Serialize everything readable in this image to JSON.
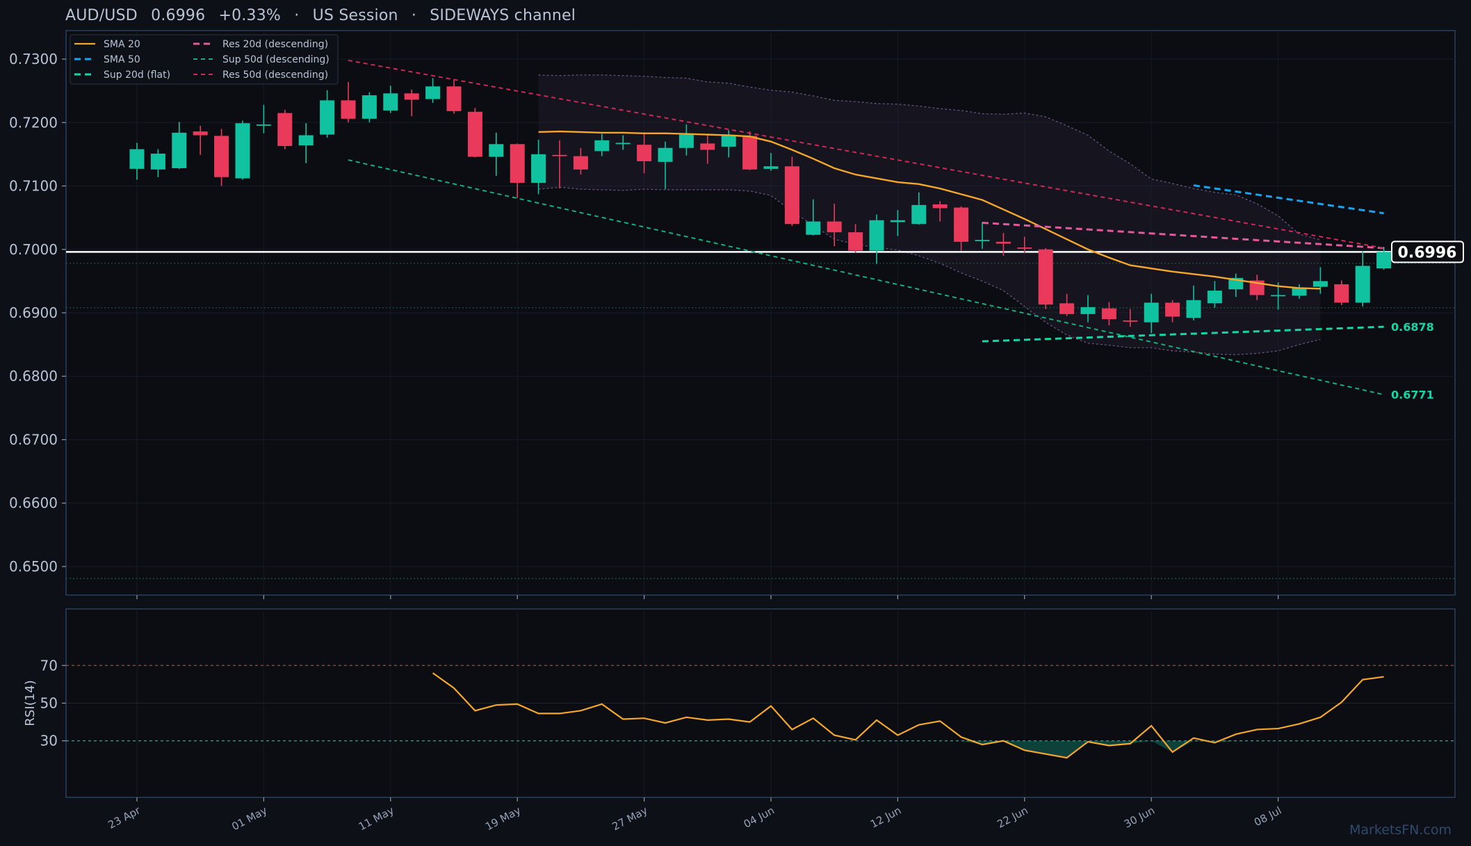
{
  "header": {
    "pair": "AUD/USD",
    "price": "0.6996",
    "change": "+0.33%",
    "session": "US Session",
    "channel": "SIDEWAYS channel",
    "separator": "·"
  },
  "watermark": "MarketsFN.com",
  "colors": {
    "background": "#0d1017",
    "panel_border": "#27405f",
    "bull": "#11c2a0",
    "bear": "#ea3a5b",
    "sma20": "#f5a72c",
    "sma50": "#19a3f0",
    "sup20": "#17d6a6",
    "res20": "#e25a9a",
    "sup50": "#16b07e",
    "res50": "#cf2a57",
    "price_line": "#ffffff",
    "text": "#b9c4d6",
    "rsi_line": "#f5a72c",
    "rsi_70": "#b8323f",
    "rsi_30": "#1aa38a"
  },
  "chart_data": [
    {
      "type": "candlestick",
      "ylim": [
        0.6455,
        0.7345
      ],
      "yticks": [
        "0.7300",
        "0.7200",
        "0.7100",
        "0.7000",
        "0.6900",
        "0.6800",
        "0.6700",
        "0.6600",
        "0.6500"
      ],
      "ytick_values": [
        0.73,
        0.72,
        0.71,
        0.7,
        0.69,
        0.68,
        0.67,
        0.66,
        0.65
      ],
      "xticks": [
        {
          "label": "23 Apr",
          "index": 0
        },
        {
          "label": "01 May",
          "index": 6
        },
        {
          "label": "11 May",
          "index": 12
        },
        {
          "label": "19 May",
          "index": 18
        },
        {
          "label": "27 May",
          "index": 24
        },
        {
          "label": "04 Jun",
          "index": 30
        },
        {
          "label": "12 Jun",
          "index": 36
        },
        {
          "label": "22 Jun",
          "index": 42
        },
        {
          "label": "30 Jun",
          "index": 48
        },
        {
          "label": "08 Jul",
          "index": 54
        }
      ],
      "candles": [
        {
          "o": 0.7127,
          "h": 0.7168,
          "l": 0.711,
          "c": 0.7158
        },
        {
          "o": 0.7126,
          "h": 0.7158,
          "l": 0.7114,
          "c": 0.7151
        },
        {
          "o": 0.7128,
          "h": 0.7201,
          "l": 0.7127,
          "c": 0.7184
        },
        {
          "o": 0.7186,
          "h": 0.7195,
          "l": 0.7149,
          "c": 0.718
        },
        {
          "o": 0.7179,
          "h": 0.719,
          "l": 0.71,
          "c": 0.7114
        },
        {
          "o": 0.7112,
          "h": 0.7203,
          "l": 0.711,
          "c": 0.7199
        },
        {
          "o": 0.7197,
          "h": 0.7228,
          "l": 0.7183,
          "c": 0.7197
        },
        {
          "o": 0.7215,
          "h": 0.722,
          "l": 0.7158,
          "c": 0.7163
        },
        {
          "o": 0.7164,
          "h": 0.7199,
          "l": 0.7136,
          "c": 0.718
        },
        {
          "o": 0.7181,
          "h": 0.7251,
          "l": 0.7176,
          "c": 0.7235
        },
        {
          "o": 0.7235,
          "h": 0.7264,
          "l": 0.72,
          "c": 0.7206
        },
        {
          "o": 0.7206,
          "h": 0.7248,
          "l": 0.72,
          "c": 0.7243
        },
        {
          "o": 0.7219,
          "h": 0.7258,
          "l": 0.7215,
          "c": 0.7246
        },
        {
          "o": 0.7246,
          "h": 0.7252,
          "l": 0.721,
          "c": 0.7236
        },
        {
          "o": 0.7237,
          "h": 0.727,
          "l": 0.7231,
          "c": 0.7257
        },
        {
          "o": 0.7257,
          "h": 0.7268,
          "l": 0.7214,
          "c": 0.7218
        },
        {
          "o": 0.7217,
          "h": 0.7223,
          "l": 0.7145,
          "c": 0.7146
        },
        {
          "o": 0.7146,
          "h": 0.7184,
          "l": 0.7116,
          "c": 0.7166
        },
        {
          "o": 0.7166,
          "h": 0.7167,
          "l": 0.7081,
          "c": 0.7105
        },
        {
          "o": 0.7105,
          "h": 0.7173,
          "l": 0.7087,
          "c": 0.715
        },
        {
          "o": 0.7149,
          "h": 0.7172,
          "l": 0.7096,
          "c": 0.7148
        },
        {
          "o": 0.7147,
          "h": 0.716,
          "l": 0.7118,
          "c": 0.7126
        },
        {
          "o": 0.7155,
          "h": 0.7182,
          "l": 0.7147,
          "c": 0.7172
        },
        {
          "o": 0.7166,
          "h": 0.718,
          "l": 0.7157,
          "c": 0.7168
        },
        {
          "o": 0.7165,
          "h": 0.7183,
          "l": 0.712,
          "c": 0.7139
        },
        {
          "o": 0.7138,
          "h": 0.717,
          "l": 0.7095,
          "c": 0.716
        },
        {
          "o": 0.716,
          "h": 0.7197,
          "l": 0.7148,
          "c": 0.7181
        },
        {
          "o": 0.7167,
          "h": 0.7181,
          "l": 0.7135,
          "c": 0.7157
        },
        {
          "o": 0.7162,
          "h": 0.7188,
          "l": 0.7145,
          "c": 0.718
        },
        {
          "o": 0.7179,
          "h": 0.7186,
          "l": 0.7125,
          "c": 0.7126
        },
        {
          "o": 0.7127,
          "h": 0.7152,
          "l": 0.7124,
          "c": 0.7131
        },
        {
          "o": 0.7131,
          "h": 0.7146,
          "l": 0.7037,
          "c": 0.704
        },
        {
          "o": 0.7023,
          "h": 0.7079,
          "l": 0.7022,
          "c": 0.7044
        },
        {
          "o": 0.7044,
          "h": 0.7072,
          "l": 0.7005,
          "c": 0.7027
        },
        {
          "o": 0.7027,
          "h": 0.704,
          "l": 0.6995,
          "c": 0.6998
        },
        {
          "o": 0.6998,
          "h": 0.7055,
          "l": 0.6977,
          "c": 0.7046
        },
        {
          "o": 0.7043,
          "h": 0.7062,
          "l": 0.7021,
          "c": 0.7046
        },
        {
          "o": 0.704,
          "h": 0.709,
          "l": 0.7039,
          "c": 0.707
        },
        {
          "o": 0.7071,
          "h": 0.7076,
          "l": 0.7044,
          "c": 0.7065
        },
        {
          "o": 0.7066,
          "h": 0.7068,
          "l": 0.6998,
          "c": 0.7012
        },
        {
          "o": 0.7013,
          "h": 0.7043,
          "l": 0.7001,
          "c": 0.7015
        },
        {
          "o": 0.7012,
          "h": 0.7026,
          "l": 0.699,
          "c": 0.7009
        },
        {
          "o": 0.7003,
          "h": 0.702,
          "l": 0.6994,
          "c": 0.7001
        },
        {
          "o": 0.7,
          "h": 0.7002,
          "l": 0.6906,
          "c": 0.6913
        },
        {
          "o": 0.6915,
          "h": 0.693,
          "l": 0.6895,
          "c": 0.6898
        },
        {
          "o": 0.6898,
          "h": 0.6928,
          "l": 0.6885,
          "c": 0.6909
        },
        {
          "o": 0.6907,
          "h": 0.6917,
          "l": 0.688,
          "c": 0.689
        },
        {
          "o": 0.6888,
          "h": 0.6906,
          "l": 0.6878,
          "c": 0.6886
        },
        {
          "o": 0.6885,
          "h": 0.693,
          "l": 0.6868,
          "c": 0.6916
        },
        {
          "o": 0.6916,
          "h": 0.692,
          "l": 0.6885,
          "c": 0.6894
        },
        {
          "o": 0.6892,
          "h": 0.6943,
          "l": 0.6888,
          "c": 0.692
        },
        {
          "o": 0.6915,
          "h": 0.695,
          "l": 0.6908,
          "c": 0.6935
        },
        {
          "o": 0.6937,
          "h": 0.6962,
          "l": 0.6925,
          "c": 0.6955
        },
        {
          "o": 0.6951,
          "h": 0.696,
          "l": 0.692,
          "c": 0.6928
        },
        {
          "o": 0.6928,
          "h": 0.6948,
          "l": 0.6905,
          "c": 0.6928
        },
        {
          "o": 0.6927,
          "h": 0.6945,
          "l": 0.6922,
          "c": 0.694
        },
        {
          "o": 0.6941,
          "h": 0.6972,
          "l": 0.693,
          "c": 0.695
        },
        {
          "o": 0.6945,
          "h": 0.6951,
          "l": 0.6912,
          "c": 0.6916
        },
        {
          "o": 0.6916,
          "h": 0.6997,
          "l": 0.691,
          "c": 0.6974
        },
        {
          "o": 0.697,
          "h": 0.7004,
          "l": 0.6968,
          "c": 0.6996
        }
      ],
      "sma20": {
        "start": 19,
        "values": [
          0.7185,
          0.7186,
          0.7185,
          0.7184,
          0.7184,
          0.7183,
          0.7183,
          0.7182,
          0.7181,
          0.718,
          0.7178,
          0.717,
          0.7157,
          0.7143,
          0.7128,
          0.7118,
          0.7112,
          0.7106,
          0.7103,
          0.7096,
          0.7087,
          0.7078,
          0.7063,
          0.7048,
          0.7032,
          0.7016,
          0.7,
          0.6987,
          0.6975,
          0.697,
          0.6965,
          0.6961,
          0.6957,
          0.6952,
          0.6947,
          0.6942,
          0.6939,
          0.6938
        ]
      },
      "bollinger": {
        "start": 19,
        "upper": [
          0.7275,
          0.7274,
          0.7275,
          0.7275,
          0.7274,
          0.7273,
          0.7271,
          0.727,
          0.7264,
          0.7262,
          0.7256,
          0.7251,
          0.7248,
          0.7242,
          0.7235,
          0.7233,
          0.723,
          0.7229,
          0.7226,
          0.7222,
          0.7219,
          0.7214,
          0.7213,
          0.7215,
          0.7209,
          0.7195,
          0.718,
          0.7155,
          0.7135,
          0.7111,
          0.7104,
          0.7096,
          0.709,
          0.7086,
          0.7072,
          0.7053,
          0.7024,
          0.7015
        ],
        "lower": [
          0.7095,
          0.7098,
          0.7095,
          0.7094,
          0.7093,
          0.7095,
          0.7094,
          0.7094,
          0.7094,
          0.7094,
          0.7092,
          0.7085,
          0.706,
          0.7038,
          0.7016,
          0.7008,
          0.7003,
          0.6999,
          0.699,
          0.6978,
          0.6963,
          0.695,
          0.6935,
          0.691,
          0.6885,
          0.6865,
          0.6852,
          0.6849,
          0.6845,
          0.6845,
          0.684,
          0.6838,
          0.6835,
          0.6834,
          0.6836,
          0.684,
          0.685,
          0.6858
        ]
      },
      "lines": [
        {
          "name": "SMA 50",
          "key": "sma50",
          "style": "dash",
          "x0": 50,
          "y0": 0.7101,
          "x1": 59,
          "y1": 0.7057
        },
        {
          "name": "Sup 20d (flat)",
          "key": "sup20",
          "style": "dash",
          "x0": 40,
          "y0": 0.6855,
          "x1": 59,
          "y1": 0.6878
        },
        {
          "name": "Res 20d (descending)",
          "key": "res20",
          "style": "dash",
          "x0": 40,
          "y0": 0.7042,
          "x1": 59,
          "y1": 0.7002
        },
        {
          "name": "Sup 50d (descending)",
          "key": "sup50",
          "style": "dash-thin",
          "x0": 10,
          "y0": 0.7141,
          "x1": 59,
          "y1": 0.6771
        },
        {
          "name": "Res 50d (descending)",
          "key": "res50",
          "style": "dash-thin",
          "x0": 10,
          "y0": 0.7298,
          "x1": 59,
          "y1": 0.7002
        }
      ],
      "legend": {
        "placement": "top-left",
        "col1": [
          {
            "name": "SMA 20",
            "key": "sma20",
            "style": "solid"
          },
          {
            "name": "SMA 50",
            "key": "sma50",
            "style": "dash"
          },
          {
            "name": "Sup 20d (flat)",
            "key": "sup20",
            "style": "dash"
          }
        ],
        "col2": [
          {
            "name": "Res 20d (descending)",
            "key": "res20",
            "style": "dash"
          },
          {
            "name": "Sup 50d (descending)",
            "key": "sup50",
            "style": "dash-thin"
          },
          {
            "name": "Res 50d (descending)",
            "key": "res50",
            "style": "dash-thin"
          }
        ]
      },
      "hlines": [
        {
          "value": 0.6996,
          "kind": "price"
        },
        {
          "value": 0.6978,
          "kind": "dotted"
        },
        {
          "value": 0.6908,
          "kind": "dotted"
        },
        {
          "value": 0.6481,
          "kind": "dotted"
        }
      ],
      "price_label": "0.6996",
      "line_labels": [
        {
          "text": "0.6878",
          "value": 0.6878
        },
        {
          "text": "0.6771",
          "value": 0.6771
        }
      ]
    },
    {
      "type": "line",
      "ylabel": "RSI(14)",
      "ylim": [
        0,
        100
      ],
      "yticks": [
        "70",
        "50",
        "30"
      ],
      "ytick_values": [
        70,
        50,
        30
      ],
      "start": 14,
      "values": [
        66,
        58,
        46,
        49,
        49.5,
        44.5,
        44.5,
        46,
        49.5,
        41.5,
        42,
        39.5,
        42.5,
        41,
        41.5,
        40,
        48.5,
        36,
        42,
        33,
        30.5,
        41,
        33,
        38.5,
        40.5,
        32,
        28,
        30,
        25,
        23,
        21,
        29.5,
        27.5,
        28.5,
        38,
        24,
        31.5,
        29,
        33.5,
        36,
        36.5,
        39,
        42.5,
        50.5,
        62.5,
        64
      ]
    }
  ]
}
